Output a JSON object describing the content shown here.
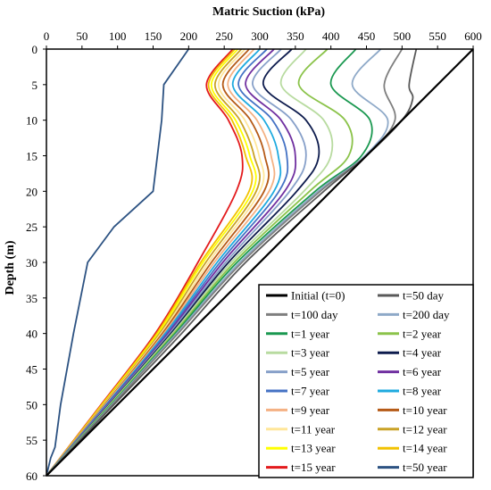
{
  "chart_data": {
    "type": "line",
    "title": "Matric Suction (kPa)",
    "xlabel": "",
    "ylabel": "Depth (m)",
    "xlim": [
      0,
      600
    ],
    "ylim": [
      0,
      60
    ],
    "y_inverted": true,
    "x_axis_position": "top",
    "grid": false,
    "legend_position": "bottom-right",
    "x_ticks": [
      "0",
      "50",
      "100",
      "150",
      "200",
      "250",
      "300",
      "350",
      "400",
      "450",
      "500",
      "550",
      "600"
    ],
    "y_ticks": [
      "0",
      "5",
      "10",
      "15",
      "20",
      "25",
      "30",
      "35",
      "40",
      "45",
      "50",
      "55",
      "60"
    ],
    "series": [
      {
        "name": "Initial (t=0)",
        "color": "#000000",
        "depth": [
          0,
          60
        ],
        "suction": [
          600,
          0
        ]
      },
      {
        "name": "t=50 day",
        "color": "#595959",
        "depth": [
          0,
          5,
          7,
          10,
          15,
          20,
          30,
          40,
          50,
          60
        ],
        "suction": [
          520,
          510,
          515,
          500,
          450,
          390,
          280,
          190,
          95,
          0
        ]
      },
      {
        "name": "t=100 day",
        "color": "#7f7f7f",
        "depth": [
          0,
          5,
          10,
          15,
          20,
          30,
          40,
          50,
          60
        ],
        "suction": [
          500,
          475,
          490,
          450,
          385,
          275,
          185,
          93,
          0
        ]
      },
      {
        "name": "t=200 day",
        "color": "#8ea9c8",
        "depth": [
          0,
          5,
          10,
          15,
          20,
          30,
          40,
          50,
          60
        ],
        "suction": [
          470,
          430,
          480,
          448,
          382,
          272,
          183,
          92,
          0
        ]
      },
      {
        "name": "t=1 year",
        "color": "#1a9850",
        "depth": [
          0,
          5,
          10,
          15,
          20,
          30,
          40,
          50,
          60
        ],
        "suction": [
          435,
          400,
          455,
          443,
          378,
          268,
          181,
          91,
          0
        ]
      },
      {
        "name": "t=2 year",
        "color": "#8bc34a",
        "depth": [
          0,
          5,
          10,
          15,
          20,
          30,
          40,
          50,
          60
        ],
        "suction": [
          395,
          355,
          420,
          425,
          370,
          264,
          179,
          90,
          0
        ]
      },
      {
        "name": "t=3 year",
        "color": "#b8dba0",
        "depth": [
          0,
          5,
          10,
          15,
          20,
          30,
          40,
          50,
          60
        ],
        "suction": [
          365,
          330,
          390,
          400,
          362,
          260,
          177,
          89,
          0
        ]
      },
      {
        "name": "t=4 year",
        "color": "#0d1b4d",
        "depth": [
          0,
          5,
          10,
          15,
          20,
          30,
          40,
          50,
          60
        ],
        "suction": [
          345,
          305,
          365,
          383,
          352,
          256,
          175,
          88,
          0
        ]
      },
      {
        "name": "t=5 year",
        "color": "#87a0c9",
        "depth": [
          0,
          5,
          10,
          15,
          20,
          30,
          40,
          50,
          60
        ],
        "suction": [
          330,
          290,
          345,
          365,
          342,
          252,
          173,
          87,
          0
        ]
      },
      {
        "name": "t=6 year",
        "color": "#7030a0",
        "depth": [
          0,
          5,
          10,
          15,
          20,
          30,
          40,
          50,
          60
        ],
        "suction": [
          320,
          280,
          330,
          350,
          335,
          248,
          171,
          86,
          0
        ]
      },
      {
        "name": "t=7 year",
        "color": "#4472c4",
        "depth": [
          0,
          5,
          10,
          15,
          20,
          30,
          40,
          50,
          60
        ],
        "suction": [
          310,
          270,
          318,
          338,
          327,
          244,
          169,
          85,
          0
        ]
      },
      {
        "name": "t=8 year",
        "color": "#1eaadf",
        "depth": [
          0,
          5,
          10,
          15,
          20,
          30,
          40,
          50,
          60
        ],
        "suction": [
          300,
          262,
          306,
          326,
          320,
          240,
          167,
          84,
          0
        ]
      },
      {
        "name": "t=9 year",
        "color": "#f4b183",
        "depth": [
          0,
          5,
          10,
          15,
          20,
          30,
          40,
          50,
          60
        ],
        "suction": [
          292,
          255,
          296,
          316,
          313,
          236,
          165,
          83,
          0
        ]
      },
      {
        "name": "t=10 year",
        "color": "#b55a16",
        "depth": [
          0,
          5,
          10,
          15,
          20,
          30,
          40,
          50,
          60
        ],
        "suction": [
          285,
          248,
          287,
          307,
          306,
          232,
          163,
          82,
          0
        ]
      },
      {
        "name": "t=11 year",
        "color": "#ffe699",
        "depth": [
          0,
          5,
          10,
          15,
          20,
          30,
          40,
          50,
          60
        ],
        "suction": [
          279,
          242,
          279,
          299,
          300,
          228,
          161,
          81,
          0
        ]
      },
      {
        "name": "t=12 year",
        "color": "#c9a227",
        "depth": [
          0,
          5,
          10,
          15,
          20,
          30,
          40,
          50,
          60
        ],
        "suction": [
          274,
          237,
          272,
          292,
          295,
          224,
          159,
          80,
          0
        ]
      },
      {
        "name": "t=13 year",
        "color": "#ffff00",
        "depth": [
          0,
          5,
          10,
          15,
          20,
          30,
          40,
          50,
          60
        ],
        "suction": [
          269,
          232,
          266,
          286,
          290,
          220,
          157,
          79,
          0
        ]
      },
      {
        "name": "t=14 year",
        "color": "#f2c200",
        "depth": [
          0,
          5,
          10,
          15,
          20,
          30,
          40,
          50,
          60
        ],
        "suction": [
          265,
          228,
          261,
          280,
          285,
          217,
          155,
          78,
          0
        ]
      },
      {
        "name": "t=15 year",
        "color": "#e31a1c",
        "depth": [
          0,
          5,
          10,
          15,
          20,
          30,
          40,
          50,
          60
        ],
        "suction": [
          262,
          225,
          256,
          275,
          267,
          213,
          153,
          77,
          0
        ]
      },
      {
        "name": "t=50 year",
        "color": "#2c5282",
        "depth": [
          0,
          5,
          10,
          20,
          25,
          30,
          40,
          50,
          56,
          57.5,
          60
        ],
        "suction": [
          200,
          165,
          162,
          150,
          95,
          58,
          38,
          20,
          12,
          6,
          0
        ]
      }
    ]
  }
}
